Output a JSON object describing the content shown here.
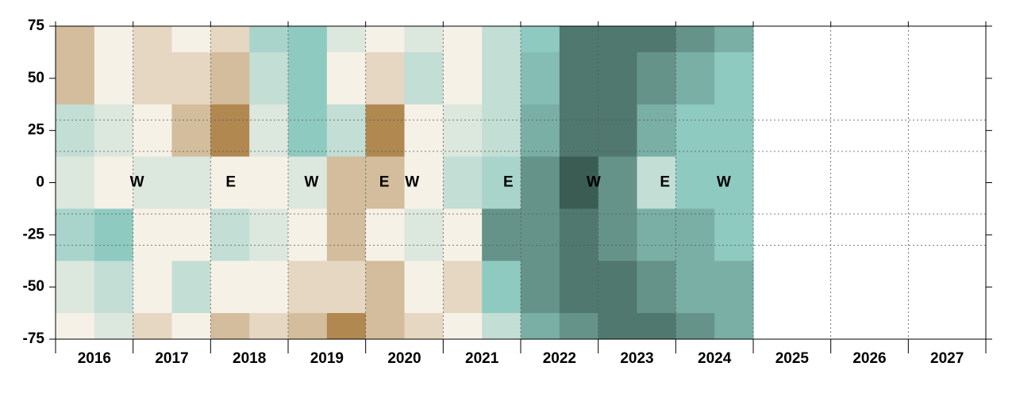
{
  "chart_data": {
    "type": "heatmap",
    "x_edges": [
      2016,
      2016.5,
      2017,
      2017.5,
      2018,
      2018.5,
      2019,
      2019.5,
      2020,
      2020.5,
      2021,
      2021.5,
      2022,
      2022.5,
      2023,
      2023.5,
      2024,
      2024.5,
      2025
    ],
    "y_edges": [
      75,
      62.5,
      37.5,
      12.5,
      -12.5,
      -37.5,
      -62.5,
      -75
    ],
    "values": [
      [
        -1,
        -1,
        1,
        0.5,
        1.5,
        0.5,
        0
      ],
      [
        0,
        0,
        0.5,
        0,
        2,
        1,
        0.5
      ],
      [
        -0.5,
        -0.5,
        0,
        0.5,
        0,
        0,
        -0.5
      ],
      [
        0,
        -0.5,
        -1,
        0.5,
        0,
        1,
        0
      ],
      [
        -0.5,
        -1,
        -2,
        0,
        1,
        0,
        -1
      ],
      [
        1.5,
        1,
        0.5,
        0,
        0.5,
        0,
        -0.5
      ],
      [
        2,
        2,
        2,
        0.5,
        0,
        -0.5,
        -1
      ],
      [
        0.5,
        0,
        1,
        -1,
        -1,
        -0.5,
        -2
      ],
      [
        0,
        -0.5,
        -2,
        -1,
        0,
        -1,
        -1
      ],
      [
        0.5,
        1,
        0,
        0,
        0.5,
        0,
        -0.5
      ],
      [
        0,
        0,
        0.5,
        1,
        0,
        -0.5,
        0
      ],
      [
        1,
        1,
        1,
        1.5,
        4,
        2,
        1
      ],
      [
        2,
        2.5,
        3,
        4,
        4,
        4,
        3
      ],
      [
        5,
        5,
        5,
        6,
        5,
        5,
        4
      ],
      [
        5,
        5,
        5,
        4,
        4,
        5,
        5
      ],
      [
        5,
        4,
        3,
        1,
        3,
        4,
        5
      ],
      [
        4,
        3,
        2,
        2,
        3,
        3,
        4
      ],
      [
        3,
        2,
        2,
        2,
        2,
        3,
        3
      ]
    ],
    "colorscale": [
      [
        -2,
        "#b08850"
      ],
      [
        0,
        "#f6f1e7"
      ],
      [
        2,
        "#8fcac1"
      ],
      [
        6,
        "#3b5c52"
      ]
    ],
    "xlim": [
      2016,
      2028
    ],
    "ylim": [
      -75,
      75
    ],
    "xticks": [
      2016,
      2017,
      2018,
      2019,
      2020,
      2021,
      2022,
      2023,
      2024,
      2025,
      2026,
      2027,
      2028
    ],
    "xtick_labels": [
      {
        "value": 2016.5,
        "label": "2016"
      },
      {
        "value": 2017.5,
        "label": "2017"
      },
      {
        "value": 2018.5,
        "label": "2018"
      },
      {
        "value": 2019.5,
        "label": "2019"
      },
      {
        "value": 2020.5,
        "label": "2020"
      },
      {
        "value": 2021.5,
        "label": "2021"
      },
      {
        "value": 2022.5,
        "label": "2022"
      },
      {
        "value": 2023.5,
        "label": "2023"
      },
      {
        "value": 2024.5,
        "label": "2024"
      },
      {
        "value": 2025.5,
        "label": "2025"
      },
      {
        "value": 2026.5,
        "label": "2026"
      },
      {
        "value": 2027.5,
        "label": "2027"
      }
    ],
    "yticks": [
      75,
      50,
      25,
      0,
      -25,
      -50,
      -75
    ],
    "hlines": [
      30,
      15,
      -15,
      -30
    ],
    "grid": true,
    "annotations": [
      {
        "text": "W",
        "x": 2017.05,
        "y": 0
      },
      {
        "text": "E",
        "x": 2018.26,
        "y": 0
      },
      {
        "text": "W",
        "x": 2019.3,
        "y": 0
      },
      {
        "text": "E",
        "x": 2020.24,
        "y": 0
      },
      {
        "text": "W",
        "x": 2020.6,
        "y": 0
      },
      {
        "text": "E",
        "x": 2021.84,
        "y": 0
      },
      {
        "text": "W",
        "x": 2022.94,
        "y": 0
      },
      {
        "text": "E",
        "x": 2023.86,
        "y": 0
      },
      {
        "text": "W",
        "x": 2024.62,
        "y": 0
      }
    ]
  }
}
